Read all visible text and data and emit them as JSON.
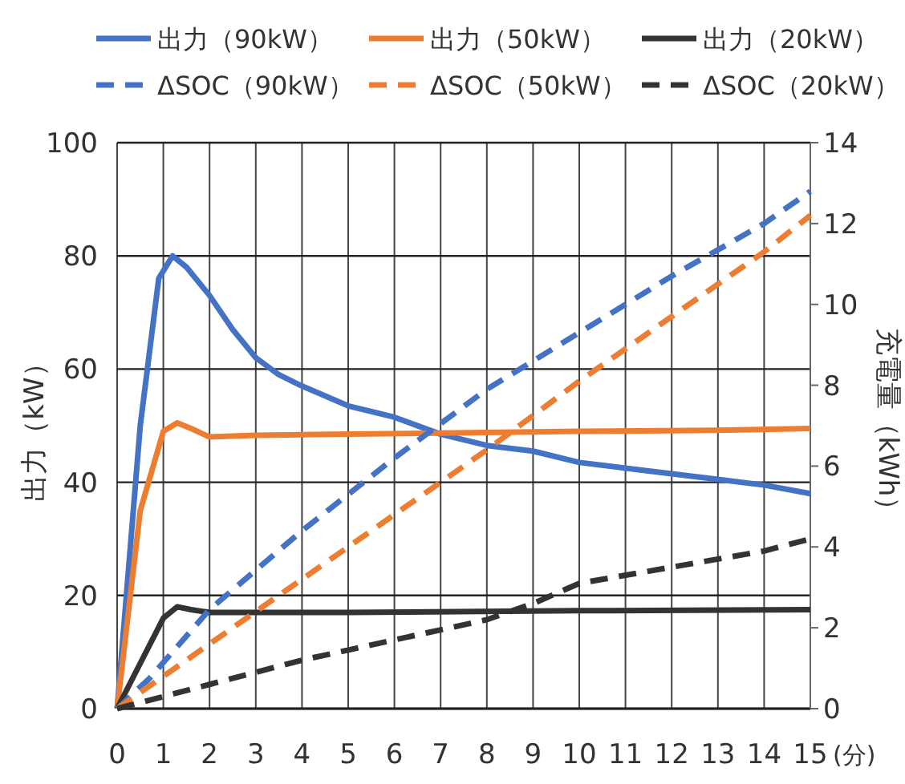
{
  "chart_data": {
    "type": "line",
    "xlabel": "(分)",
    "ylabel": "出力（kW）",
    "y2label": "充電量（kWh）",
    "xlim": [
      0,
      15
    ],
    "xticks": [
      0,
      1,
      2,
      3,
      4,
      5,
      6,
      7,
      8,
      9,
      10,
      11,
      12,
      13,
      14,
      15
    ],
    "ylim": [
      0,
      100
    ],
    "yticks": [
      0,
      20,
      40,
      60,
      80,
      100
    ],
    "y2lim": [
      0,
      14
    ],
    "y2ticks": [
      0,
      2,
      4,
      6,
      8,
      10,
      12,
      14
    ],
    "grid": true,
    "legend": "top",
    "marker": "none",
    "series": [
      {
        "name": "出力（90kW）",
        "color": "#4472c4",
        "line_style": "solid",
        "x": [
          0,
          0.5,
          0.9,
          1.2,
          1.5,
          2,
          2.5,
          3,
          3.5,
          4,
          5,
          6,
          7,
          8,
          9,
          10,
          11,
          12,
          13,
          14,
          15
        ],
        "values": [
          0,
          50,
          76,
          80,
          78,
          73,
          67,
          62,
          59,
          57,
          53.5,
          51.5,
          48.5,
          46.5,
          45.5,
          43.5,
          42.5,
          41.5,
          40.5,
          39.5,
          38
        ]
      },
      {
        "name": "出力（50kW）",
        "color": "#ed7d31",
        "line_style": "solid",
        "x": [
          0,
          0.5,
          1,
          1.3,
          1.6,
          2,
          3,
          5,
          8,
          10,
          13,
          15
        ],
        "values": [
          0,
          35,
          49,
          50.5,
          49.5,
          48,
          48.3,
          48.5,
          48.8,
          49,
          49.2,
          49.5
        ]
      },
      {
        "name": "出力（20kW）",
        "color": "#333333",
        "line_style": "solid",
        "x": [
          0,
          0.5,
          1,
          1.3,
          1.6,
          2,
          5,
          10,
          15
        ],
        "values": [
          0,
          8,
          16,
          18,
          17.5,
          17,
          17,
          17.3,
          17.5
        ]
      },
      {
        "name": "ΔSOC（90kW）",
        "color": "#4472c4",
        "line_style": "dashed",
        "axis": "y2",
        "x": [
          0,
          0.7,
          2,
          4,
          6,
          8,
          10,
          12,
          14,
          15
        ],
        "values": [
          0,
          0.75,
          2.45,
          4.4,
          6.2,
          7.9,
          9.3,
          10.7,
          12,
          12.8
        ]
      },
      {
        "name": "ΔSOC（50kW）",
        "color": "#ed7d31",
        "line_style": "dashed",
        "axis": "y2",
        "x": [
          0,
          1,
          4,
          8,
          10,
          12,
          14,
          15
        ],
        "values": [
          0,
          0.8,
          3.2,
          6.4,
          8.1,
          9.7,
          11.3,
          12.2
        ]
      },
      {
        "name": "ΔSOC（20kW）",
        "color": "#333333",
        "line_style": "dashed",
        "axis": "y2",
        "x": [
          0,
          2,
          4,
          6,
          8,
          9,
          10,
          12,
          14,
          15
        ],
        "values": [
          0,
          0.6,
          1.2,
          1.7,
          2.2,
          2.6,
          3.1,
          3.5,
          3.9,
          4.2
        ]
      }
    ]
  }
}
